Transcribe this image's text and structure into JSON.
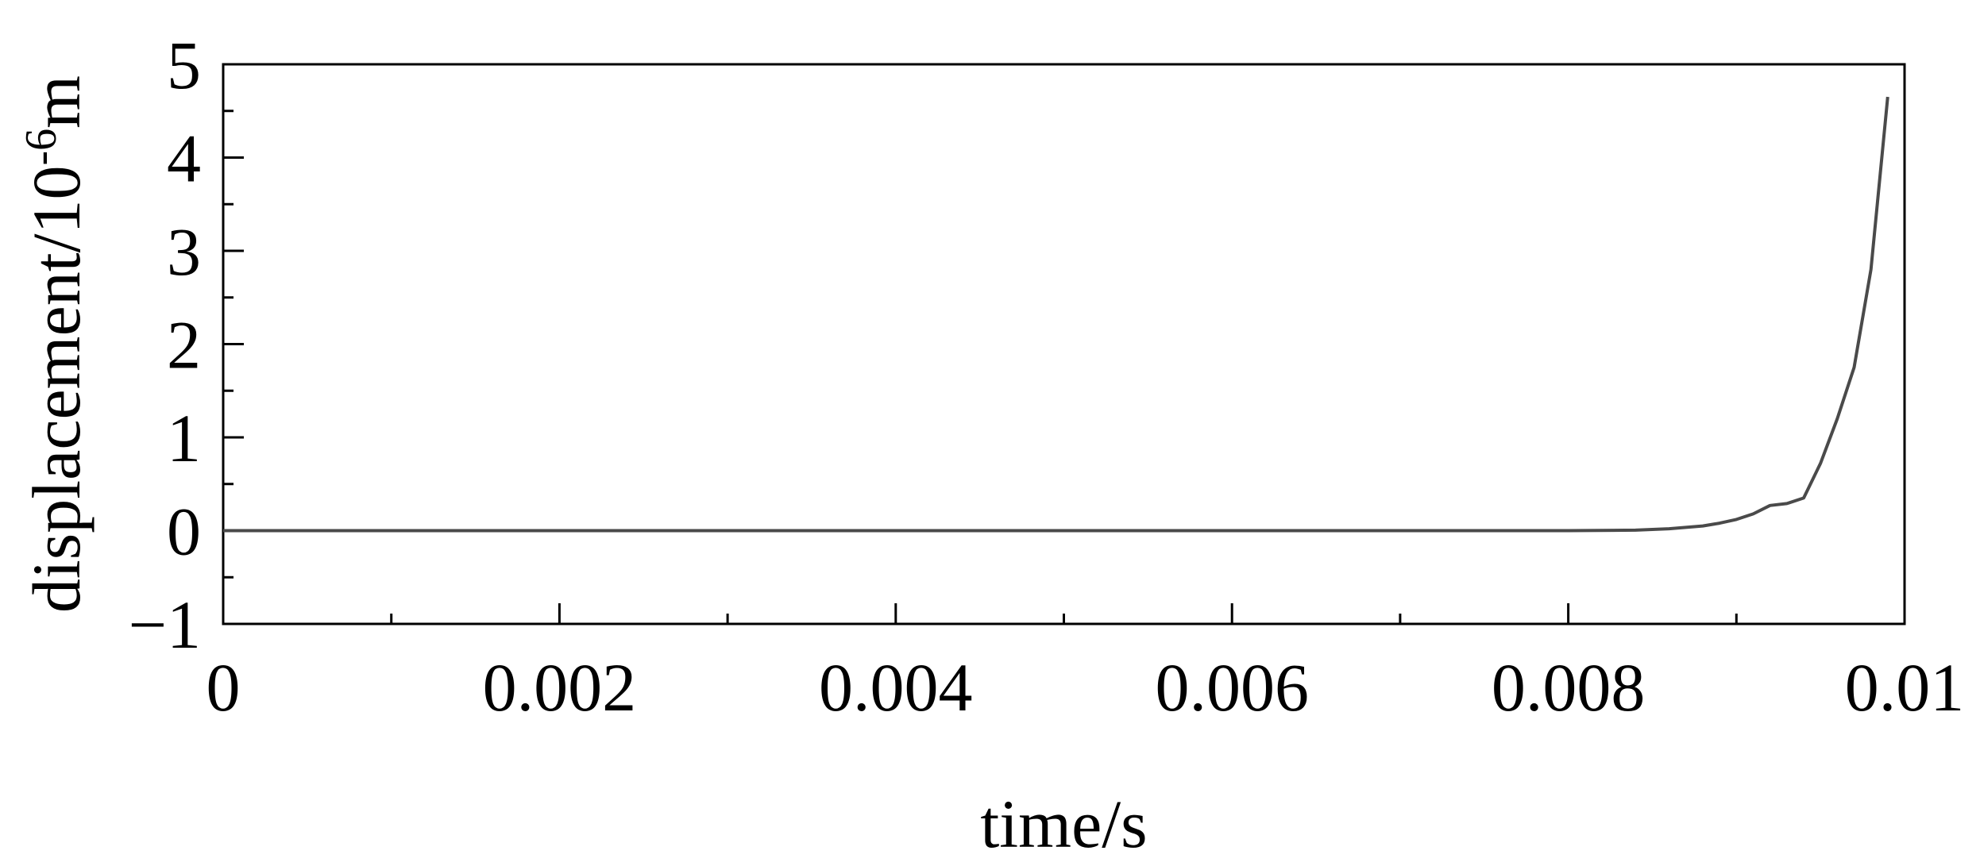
{
  "chart_data": {
    "type": "line",
    "title": "",
    "xlabel": "time/s",
    "ylabel": {
      "prefix": "displacement/10",
      "superscript": "-6",
      "suffix": "m"
    },
    "xlim": [
      0,
      0.01
    ],
    "ylim": [
      -1,
      5
    ],
    "grid": false,
    "x_major_ticks": [
      0,
      0.002,
      0.004,
      0.006,
      0.008,
      0.01
    ],
    "x_tick_labels": [
      "0",
      "0.002",
      "0.004",
      "0.006",
      "0.008",
      "0.01"
    ],
    "x_minor_ticks": [
      0.001,
      0.003,
      0.005,
      0.007,
      0.009
    ],
    "y_major_ticks": [
      -1,
      0,
      1,
      2,
      3,
      4,
      5
    ],
    "y_tick_labels": [
      "−1",
      "0",
      "1",
      "2",
      "3",
      "4",
      "5"
    ],
    "y_minor_ticks": [
      -0.5,
      0.5,
      1.5,
      2.5,
      3.5,
      4.5
    ],
    "series": [
      {
        "color": "#4a4a4a",
        "x": [
          0,
          0.001,
          0.002,
          0.003,
          0.004,
          0.005,
          0.006,
          0.007,
          0.008,
          0.0084,
          0.0086,
          0.0088,
          0.0089,
          0.009,
          0.0091,
          0.0092,
          0.0093,
          0.0094,
          0.0095,
          0.0096,
          0.0097,
          0.0098,
          0.0099
        ],
        "y": [
          0,
          0,
          0,
          0,
          0,
          0,
          0,
          0,
          0,
          0.005,
          0.02,
          0.05,
          0.08,
          0.12,
          0.18,
          0.27,
          0.29,
          0.35,
          0.72,
          1.2,
          1.75,
          2.8,
          4.65
        ]
      }
    ]
  }
}
